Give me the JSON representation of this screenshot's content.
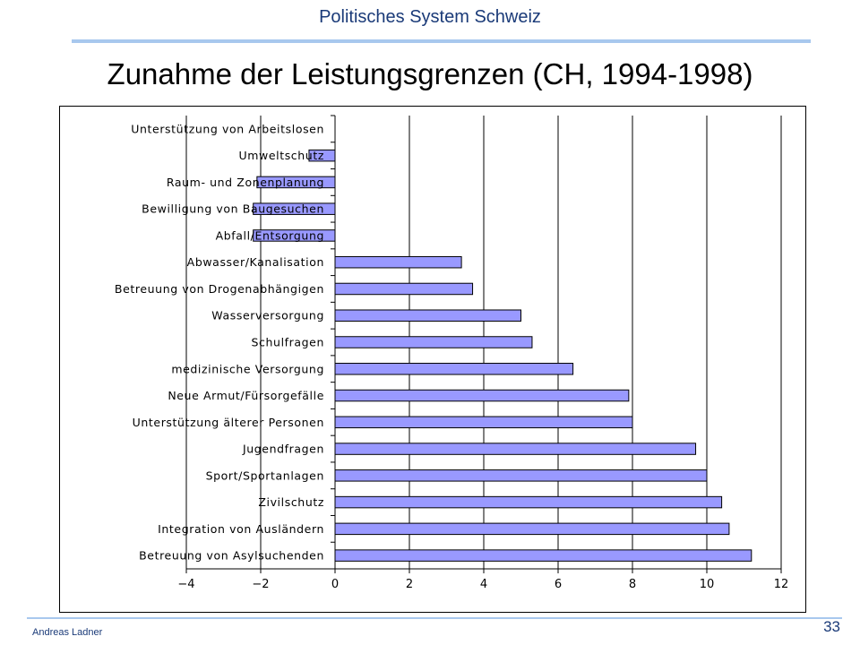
{
  "header": {
    "title": "Politisches System Schweiz"
  },
  "slide": {
    "title": "Zunahme der Leistungsgrenzen (CH, 1994-1998)"
  },
  "footer": {
    "author": "Andreas Ladner",
    "page_number": "33"
  },
  "colors": {
    "bar_fill": "#9999ff",
    "bar_stroke": "#000000",
    "accent": "#a8c8ee",
    "text_blue": "#1a3a78"
  },
  "chart_data": {
    "type": "bar",
    "orientation": "horizontal",
    "title": "",
    "xlabel": "",
    "ylabel": "",
    "xlim": [
      -4,
      12
    ],
    "xticks": [
      -4,
      -2,
      0,
      2,
      4,
      6,
      8,
      10,
      12
    ],
    "grid": "vertical",
    "legend": "none",
    "categories": [
      "Unterstützung von Arbeitslosen",
      "Umweltschutz",
      "Raum- und Zonenplanung",
      "Bewilligung von Baugesuchen",
      "Abfall/Entsorgung",
      "Abwasser/Kanalisation",
      "Betreuung von Drogenabhängigen",
      "Wasserversorgung",
      "Schulfragen",
      "medizinische Versorgung",
      "Neue Armut/Fürsorgefälle",
      "Unterstützung älterer Personen",
      "Jugendfragen",
      "Sport/Sportanlagen",
      "Zivilschutz",
      "Integration von Ausländern",
      "Betreuung von Asylsuchenden"
    ],
    "values": [
      0,
      -0.7,
      -2.1,
      -2.2,
      -2.2,
      3.4,
      3.7,
      5.0,
      5.3,
      6.4,
      7.9,
      8.0,
      9.7,
      10.0,
      10.4,
      10.6,
      11.2
    ]
  }
}
